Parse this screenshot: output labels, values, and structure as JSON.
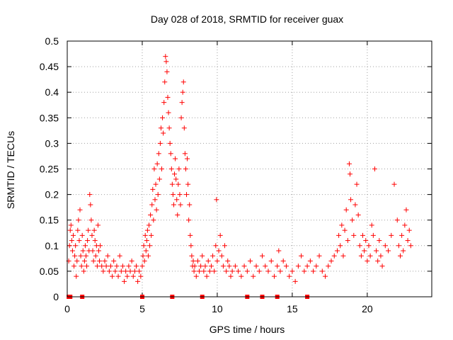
{
  "chart_data": {
    "type": "scatter",
    "title": "Day 028 of 2018, SRMTID for receiver guax",
    "xlabel": "GPS time / hours",
    "ylabel": "SRMTID / TECUs",
    "xlim": [
      0,
      24.3
    ],
    "ylim": [
      0,
      0.5
    ],
    "x_ticks": [
      0,
      5,
      10,
      15,
      20
    ],
    "x_tick_labels": [
      "0",
      "5",
      "10",
      "15",
      "20"
    ],
    "y_ticks": [
      0,
      0.05,
      0.1,
      0.15,
      0.2,
      0.25,
      0.3,
      0.35,
      0.4,
      0.45,
      0.5
    ],
    "y_tick_labels": [
      "0",
      "0.05",
      "0.1",
      "0.15",
      "0.2",
      "0.25",
      "0.3",
      "0.35",
      "0.4",
      "0.45",
      "0.5"
    ],
    "grid": true,
    "marker": "plus",
    "color": "#ff0000",
    "zero_markers_x": [
      0.1,
      0.2,
      1.0,
      5.0,
      7.0,
      9.0,
      12.0,
      13.0,
      14.0,
      16.0
    ],
    "series": [
      {
        "name": "SRMTID",
        "points": [
          [
            0.1,
            0.07
          ],
          [
            0.15,
            0.1
          ],
          [
            0.2,
            0.13
          ],
          [
            0.25,
            0.14
          ],
          [
            0.3,
            0.11
          ],
          [
            0.35,
            0.09
          ],
          [
            0.4,
            0.12
          ],
          [
            0.45,
            0.06
          ],
          [
            0.5,
            0.08
          ],
          [
            0.55,
            0.1
          ],
          [
            0.6,
            0.04
          ],
          [
            0.65,
            0.07
          ],
          [
            0.7,
            0.13
          ],
          [
            0.75,
            0.15
          ],
          [
            0.8,
            0.11
          ],
          [
            0.85,
            0.17
          ],
          [
            0.9,
            0.08
          ],
          [
            0.95,
            0.06
          ],
          [
            1.0,
            0.12
          ],
          [
            1.05,
            0.09
          ],
          [
            1.1,
            0.05
          ],
          [
            1.15,
            0.07
          ],
          [
            1.2,
            0.1
          ],
          [
            1.25,
            0.08
          ],
          [
            1.3,
            0.06
          ],
          [
            1.35,
            0.11
          ],
          [
            1.4,
            0.13
          ],
          [
            1.45,
            0.09
          ],
          [
            1.5,
            0.2
          ],
          [
            1.55,
            0.18
          ],
          [
            1.6,
            0.15
          ],
          [
            1.65,
            0.12
          ],
          [
            1.7,
            0.09
          ],
          [
            1.75,
            0.07
          ],
          [
            1.8,
            0.13
          ],
          [
            1.85,
            0.11
          ],
          [
            1.9,
            0.08
          ],
          [
            1.95,
            0.1
          ],
          [
            2.0,
            0.06
          ],
          [
            2.05,
            0.14
          ],
          [
            2.1,
            0.09
          ],
          [
            2.15,
            0.07
          ],
          [
            2.2,
            0.1
          ],
          [
            2.3,
            0.06
          ],
          [
            2.4,
            0.05
          ],
          [
            2.5,
            0.07
          ],
          [
            2.6,
            0.06
          ],
          [
            2.7,
            0.08
          ],
          [
            2.8,
            0.05
          ],
          [
            2.9,
            0.06
          ],
          [
            3.0,
            0.04
          ],
          [
            3.1,
            0.07
          ],
          [
            3.2,
            0.05
          ],
          [
            3.3,
            0.06
          ],
          [
            3.4,
            0.04
          ],
          [
            3.5,
            0.08
          ],
          [
            3.6,
            0.05
          ],
          [
            3.7,
            0.06
          ],
          [
            3.8,
            0.03
          ],
          [
            3.9,
            0.05
          ],
          [
            4.0,
            0.04
          ],
          [
            4.1,
            0.06
          ],
          [
            4.2,
            0.05
          ],
          [
            4.3,
            0.07
          ],
          [
            4.4,
            0.04
          ],
          [
            4.5,
            0.05
          ],
          [
            4.6,
            0.06
          ],
          [
            4.7,
            0.03
          ],
          [
            4.8,
            0.05
          ],
          [
            4.9,
            0.04
          ],
          [
            5.0,
            0.06
          ],
          [
            5.05,
            0.08
          ],
          [
            5.1,
            0.1
          ],
          [
            5.15,
            0.07
          ],
          [
            5.2,
            0.12
          ],
          [
            5.25,
            0.09
          ],
          [
            5.3,
            0.11
          ],
          [
            5.35,
            0.13
          ],
          [
            5.4,
            0.08
          ],
          [
            5.45,
            0.14
          ],
          [
            5.5,
            0.1
          ],
          [
            5.55,
            0.16
          ],
          [
            5.6,
            0.12
          ],
          [
            5.65,
            0.18
          ],
          [
            5.7,
            0.21
          ],
          [
            5.75,
            0.15
          ],
          [
            5.8,
            0.25
          ],
          [
            5.85,
            0.19
          ],
          [
            5.9,
            0.22
          ],
          [
            5.95,
            0.17
          ],
          [
            6.0,
            0.26
          ],
          [
            6.05,
            0.2
          ],
          [
            6.1,
            0.28
          ],
          [
            6.15,
            0.23
          ],
          [
            6.2,
            0.3
          ],
          [
            6.25,
            0.33
          ],
          [
            6.3,
            0.25
          ],
          [
            6.35,
            0.35
          ],
          [
            6.4,
            0.32
          ],
          [
            6.45,
            0.38
          ],
          [
            6.5,
            0.42
          ],
          [
            6.55,
            0.47
          ],
          [
            6.6,
            0.46
          ],
          [
            6.65,
            0.44
          ],
          [
            6.7,
            0.39
          ],
          [
            6.75,
            0.36
          ],
          [
            6.8,
            0.33
          ],
          [
            6.85,
            0.3
          ],
          [
            6.9,
            0.28
          ],
          [
            6.95,
            0.25
          ],
          [
            7.0,
            0.22
          ],
          [
            7.05,
            0.2
          ],
          [
            7.1,
            0.18
          ],
          [
            7.15,
            0.24
          ],
          [
            7.2,
            0.27
          ],
          [
            7.25,
            0.23
          ],
          [
            7.3,
            0.19
          ],
          [
            7.35,
            0.16
          ],
          [
            7.4,
            0.22
          ],
          [
            7.45,
            0.25
          ],
          [
            7.5,
            0.2
          ],
          [
            7.55,
            0.18
          ],
          [
            7.6,
            0.35
          ],
          [
            7.65,
            0.38
          ],
          [
            7.7,
            0.4
          ],
          [
            7.75,
            0.42
          ],
          [
            7.8,
            0.33
          ],
          [
            7.85,
            0.28
          ],
          [
            7.9,
            0.25
          ],
          [
            7.95,
            0.2
          ],
          [
            8.0,
            0.27
          ],
          [
            8.05,
            0.22
          ],
          [
            8.1,
            0.15
          ],
          [
            8.15,
            0.18
          ],
          [
            8.2,
            0.12
          ],
          [
            8.25,
            0.1
          ],
          [
            8.3,
            0.08
          ],
          [
            8.35,
            0.06
          ],
          [
            8.4,
            0.07
          ],
          [
            8.45,
            0.05
          ],
          [
            8.5,
            0.06
          ],
          [
            8.6,
            0.04
          ],
          [
            8.7,
            0.07
          ],
          [
            8.8,
            0.05
          ],
          [
            8.9,
            0.06
          ],
          [
            9.0,
            0.08
          ],
          [
            9.1,
            0.05
          ],
          [
            9.2,
            0.06
          ],
          [
            9.3,
            0.04
          ],
          [
            9.4,
            0.07
          ],
          [
            9.5,
            0.05
          ],
          [
            9.6,
            0.06
          ],
          [
            9.7,
            0.08
          ],
          [
            9.8,
            0.05
          ],
          [
            9.9,
            0.1
          ],
          [
            9.95,
            0.19
          ],
          [
            10.0,
            0.07
          ],
          [
            10.1,
            0.09
          ],
          [
            10.2,
            0.12
          ],
          [
            10.3,
            0.08
          ],
          [
            10.4,
            0.06
          ],
          [
            10.5,
            0.1
          ],
          [
            10.6,
            0.05
          ],
          [
            10.7,
            0.07
          ],
          [
            10.8,
            0.06
          ],
          [
            10.9,
            0.04
          ],
          [
            11.0,
            0.05
          ],
          [
            11.2,
            0.06
          ],
          [
            11.4,
            0.05
          ],
          [
            11.6,
            0.04
          ],
          [
            11.8,
            0.06
          ],
          [
            12.0,
            0.05
          ],
          [
            12.2,
            0.07
          ],
          [
            12.4,
            0.04
          ],
          [
            12.6,
            0.06
          ],
          [
            12.8,
            0.05
          ],
          [
            13.0,
            0.08
          ],
          [
            13.2,
            0.06
          ],
          [
            13.4,
            0.05
          ],
          [
            13.6,
            0.07
          ],
          [
            13.8,
            0.04
          ],
          [
            14.0,
            0.06
          ],
          [
            14.1,
            0.09
          ],
          [
            14.2,
            0.05
          ],
          [
            14.4,
            0.07
          ],
          [
            14.6,
            0.06
          ],
          [
            14.8,
            0.04
          ],
          [
            15.0,
            0.05
          ],
          [
            15.2,
            0.03
          ],
          [
            15.4,
            0.06
          ],
          [
            15.6,
            0.08
          ],
          [
            15.8,
            0.05
          ],
          [
            16.0,
            0.06
          ],
          [
            16.2,
            0.07
          ],
          [
            16.4,
            0.05
          ],
          [
            16.6,
            0.06
          ],
          [
            16.8,
            0.08
          ],
          [
            17.0,
            0.05
          ],
          [
            17.2,
            0.04
          ],
          [
            17.4,
            0.06
          ],
          [
            17.6,
            0.07
          ],
          [
            17.8,
            0.08
          ],
          [
            18.0,
            0.09
          ],
          [
            18.1,
            0.12
          ],
          [
            18.2,
            0.1
          ],
          [
            18.3,
            0.14
          ],
          [
            18.4,
            0.08
          ],
          [
            18.5,
            0.13
          ],
          [
            18.6,
            0.17
          ],
          [
            18.7,
            0.11
          ],
          [
            18.8,
            0.26
          ],
          [
            18.85,
            0.24
          ],
          [
            18.9,
            0.19
          ],
          [
            19.0,
            0.15
          ],
          [
            19.1,
            0.12
          ],
          [
            19.2,
            0.18
          ],
          [
            19.3,
            0.22
          ],
          [
            19.4,
            0.16
          ],
          [
            19.5,
            0.1
          ],
          [
            19.6,
            0.08
          ],
          [
            19.7,
            0.12
          ],
          [
            19.8,
            0.09
          ],
          [
            19.9,
            0.11
          ],
          [
            20.0,
            0.07
          ],
          [
            20.1,
            0.1
          ],
          [
            20.2,
            0.08
          ],
          [
            20.3,
            0.14
          ],
          [
            20.4,
            0.12
          ],
          [
            20.5,
            0.25
          ],
          [
            20.6,
            0.09
          ],
          [
            20.7,
            0.07
          ],
          [
            20.8,
            0.11
          ],
          [
            20.9,
            0.08
          ],
          [
            21.0,
            0.06
          ],
          [
            21.2,
            0.1
          ],
          [
            21.4,
            0.09
          ],
          [
            21.6,
            0.12
          ],
          [
            21.8,
            0.22
          ],
          [
            22.0,
            0.15
          ],
          [
            22.1,
            0.1
          ],
          [
            22.2,
            0.08
          ],
          [
            22.3,
            0.12
          ],
          [
            22.4,
            0.09
          ],
          [
            22.5,
            0.14
          ],
          [
            22.6,
            0.17
          ],
          [
            22.7,
            0.11
          ],
          [
            22.8,
            0.13
          ],
          [
            22.9,
            0.1
          ]
        ]
      }
    ]
  }
}
